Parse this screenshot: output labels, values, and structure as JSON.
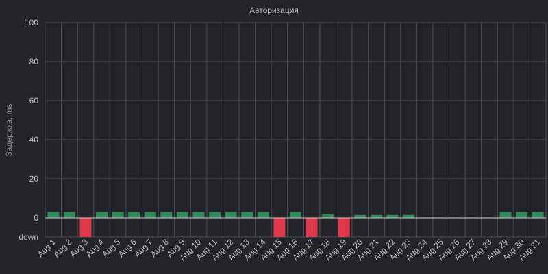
{
  "chart_data": {
    "type": "bar",
    "title": "Авторизация",
    "xlabel": "",
    "ylabel": "Задержка, ms",
    "ylim": [
      0,
      100
    ],
    "yticks": [
      "100",
      "80",
      "60",
      "40",
      "20",
      "0"
    ],
    "down_label": "down",
    "grid": true,
    "categories": [
      "Aug 1",
      "Aug 2",
      "Aug 3",
      "Aug 4",
      "Aug 5",
      "Aug 6",
      "Aug 7",
      "Aug 8",
      "Aug 9",
      "Aug 10",
      "Aug 11",
      "Aug 12",
      "Aug 13",
      "Aug 14",
      "Aug 15",
      "Aug 16",
      "Aug 17",
      "Aug 18",
      "Aug 19",
      "Aug 20",
      "Aug 21",
      "Aug 22",
      "Aug 23",
      "Aug 24",
      "Aug 25",
      "Aug 26",
      "Aug 27",
      "Aug 28",
      "Aug 29",
      "Aug 30",
      "Aug 31"
    ],
    "values": [
      3,
      3,
      null,
      3,
      3,
      3,
      3,
      3,
      3,
      3,
      3,
      3,
      3,
      3,
      null,
      3,
      null,
      2,
      null,
      1.5,
      1.5,
      1.5,
      1.5,
      0,
      0,
      0,
      0,
      0,
      3,
      3,
      3
    ],
    "down": [
      false,
      false,
      true,
      false,
      false,
      false,
      false,
      false,
      false,
      false,
      false,
      false,
      false,
      false,
      true,
      false,
      true,
      false,
      true,
      false,
      false,
      false,
      false,
      false,
      false,
      false,
      false,
      false,
      false,
      false,
      false
    ]
  },
  "colors": {
    "background": "#222429",
    "grid": "#4d4f55",
    "bar_up": "#2f8a5c",
    "bar_down": "#e0384a",
    "zero_line": "#cfcfcf"
  }
}
